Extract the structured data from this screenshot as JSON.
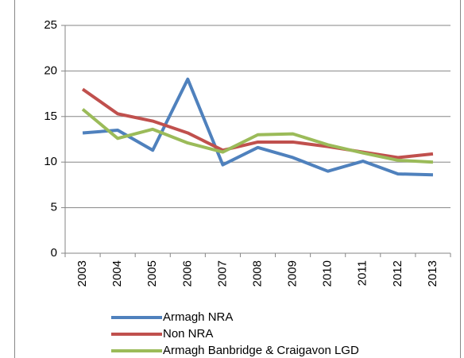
{
  "chart_data": {
    "type": "line",
    "categories": [
      "2003",
      "2004",
      "2005",
      "2006",
      "2007",
      "2008",
      "2009",
      "2010",
      "2011",
      "2012",
      "2013"
    ],
    "series": [
      {
        "name": "Armagh NRA",
        "color": "#4f81bd",
        "values": [
          13.2,
          13.5,
          11.3,
          19.1,
          9.7,
          11.6,
          10.5,
          9.0,
          10.1,
          8.7,
          8.6
        ]
      },
      {
        "name": "Non NRA",
        "color": "#c0504d",
        "values": [
          18.0,
          15.3,
          14.5,
          13.2,
          11.3,
          12.2,
          12.2,
          11.7,
          11.1,
          10.5,
          10.9
        ]
      },
      {
        "name": "Armagh Banbridge & Craigavon LGD",
        "color": "#9bbb59",
        "values": [
          15.8,
          12.6,
          13.6,
          12.1,
          11.1,
          13.0,
          13.1,
          11.9,
          11.0,
          10.2,
          10.0
        ]
      }
    ],
    "ylim": [
      0,
      25
    ],
    "yticks": [
      0,
      5,
      10,
      15,
      20,
      25
    ],
    "grid": true
  }
}
